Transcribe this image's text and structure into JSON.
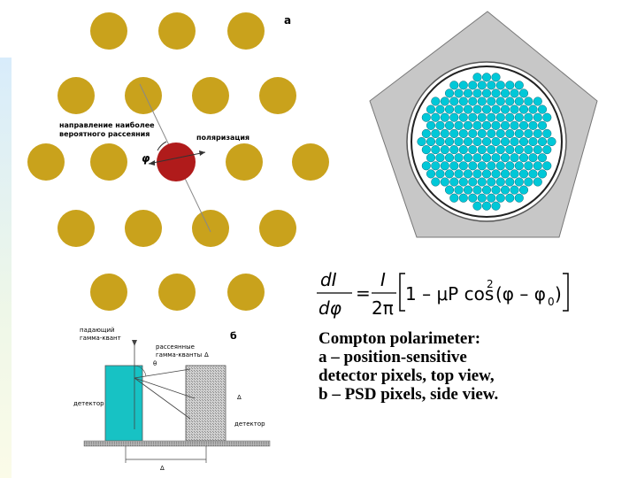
{
  "diagram_a": {
    "panel_label": "а",
    "scatter_label_line1": "направление наиболее",
    "scatter_label_line2": "вероятного рассеяния",
    "polarization_label": "поляризация",
    "phi_label": "φ"
  },
  "diagram_b": {
    "panel_label": "б",
    "incident_line1": "падающий",
    "incident_line2": "гамма-квант",
    "scattered_line1": "рассеянные",
    "scattered_line2": "гамма-кванты",
    "dim_top": "Δ",
    "theta_label": "θ",
    "detector_left": "детектор",
    "detector_right": "детектор",
    "dim_side": "Δ",
    "dim_bottom": "Δ"
  },
  "formula": {
    "lhs_num": "dI",
    "lhs_den": "dφ",
    "eq": "=",
    "rhs_num": "I",
    "rhs_den": "2π",
    "bracket_content": "1 – μP cos",
    "exp": "2",
    "paren": "(φ – φ",
    "sub": "0",
    "close": ")"
  },
  "caption": {
    "line1": "Compton polarimeter:",
    "line2": "a – position-sensitive",
    "line3": "detector pixels, top view,",
    "line4": "b – PSD pixels, side view."
  },
  "colors": {
    "pixel_gold": "#c9a21c",
    "pixel_center": "#b01b1b",
    "hex_face": "#00c8d8",
    "detector_cyan": "#17c2c4",
    "pentagon_fill": "#c7c7c7"
  }
}
